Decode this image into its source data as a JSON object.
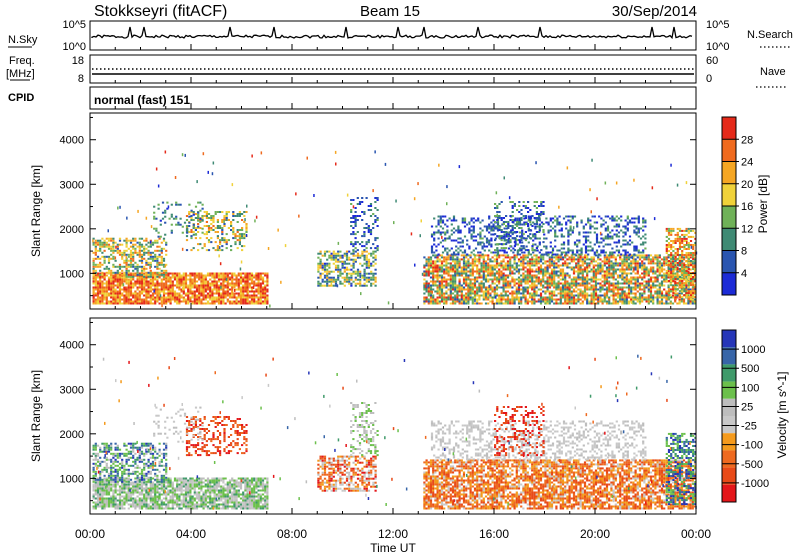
{
  "header": {
    "station": "Stokkseyri (fitACF)",
    "beam": "Beam 15",
    "date": "30/Sep/2014"
  },
  "panels": {
    "nsky_label": "N.Sky",
    "nsky_ticks": [
      "10^5",
      "10^0"
    ],
    "nsearch_label": "N.Search",
    "nsearch_ticks": [
      "10^5",
      "10^0"
    ],
    "freq_label_1": "Freq.",
    "freq_label_2": "[MHz]",
    "freq_ticks": [
      "18",
      "8"
    ],
    "nave_label": "Nave",
    "nave_ticks": [
      "60",
      "0"
    ],
    "cpid_label": "CPID",
    "cpid_text": "normal (fast) 151"
  },
  "colors": {
    "power_scale": [
      "#1c2bd6",
      "#2a55b0",
      "#3f8a74",
      "#6fb158",
      "#f0d23a",
      "#f5a623",
      "#ef6a1e",
      "#e52a1a"
    ],
    "velocity_scale": [
      "#2636b8",
      "#3765a8",
      "#3f9a6a",
      "#6cc04c",
      "#bdbdbd",
      "#c8c8c8",
      "#f49a1c",
      "#ee6a20",
      "#e84a18",
      "#e4161a"
    ]
  },
  "chart_data": [
    {
      "type": "heatmap",
      "name": "power",
      "ylabel": "Slant Range [km]",
      "yticks": [
        "1000",
        "2000",
        "3000",
        "4000"
      ],
      "ylim": [
        200,
        4600
      ],
      "colorbar_label": "Power [dB]",
      "colorbar_ticks": [
        "4",
        "8",
        "12",
        "16",
        "20",
        "24",
        "28"
      ],
      "clim": [
        0,
        32
      ]
    },
    {
      "type": "heatmap",
      "name": "velocity",
      "ylabel": "Slant Range [km]",
      "yticks": [
        "1000",
        "2000",
        "3000",
        "4000"
      ],
      "ylim": [
        200,
        4600
      ],
      "colorbar_label": "Velocity [m s^-1]",
      "colorbar_ticks": [
        "1000",
        "500",
        "100",
        "25",
        "-25",
        "-100",
        "-500",
        "-1000"
      ]
    }
  ],
  "xaxis": {
    "label": "Time UT",
    "ticks": [
      "00:00",
      "04:00",
      "08:00",
      "12:00",
      "16:00",
      "20:00",
      "00:00"
    ],
    "xlim": [
      0,
      24
    ]
  }
}
